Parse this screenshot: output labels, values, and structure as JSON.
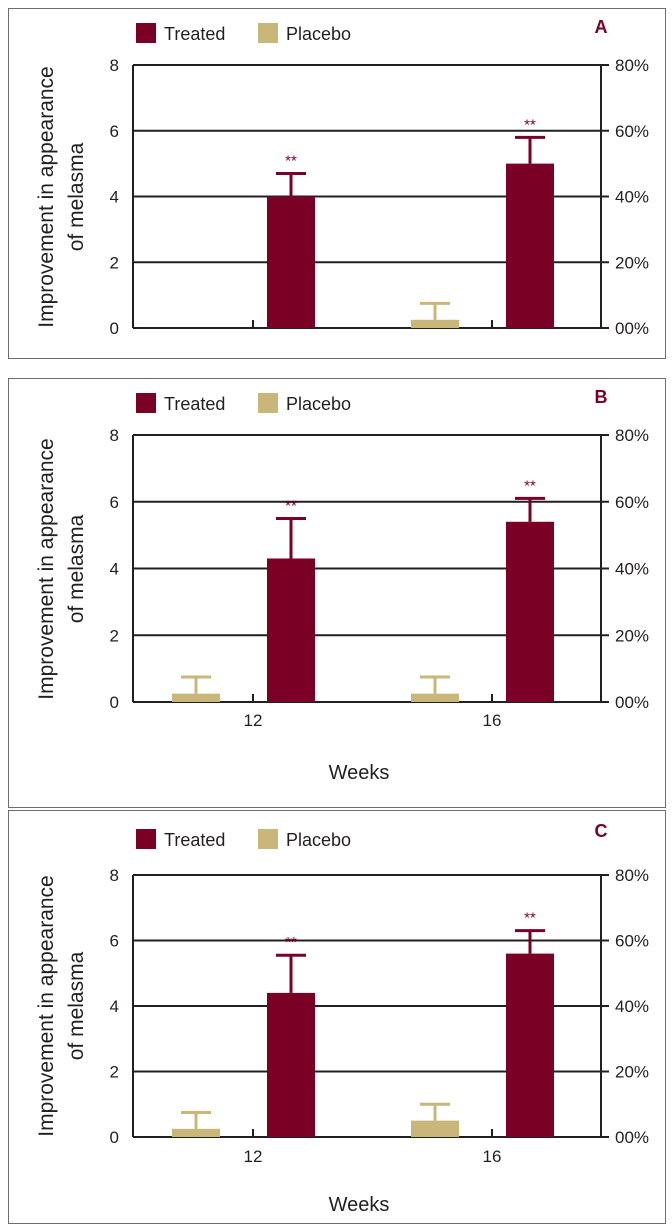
{
  "chart_data": [
    {
      "type": "bar",
      "panel_label": "A",
      "categories": [
        "",
        ""
      ],
      "series": [
        {
          "name": "Treated",
          "color": "#7a0026",
          "values": [
            4.0,
            5.0
          ],
          "errors": [
            0.7,
            0.8
          ],
          "annotations": [
            "**",
            "**"
          ]
        },
        {
          "name": "Placebo",
          "color": "#c9b679",
          "values": [
            0.0,
            0.25
          ],
          "errors": [
            0.0,
            0.5
          ],
          "annotations": [
            "",
            ""
          ]
        }
      ],
      "xlabel": "",
      "ylabel": "Improvement in appearance of melasma",
      "ylim": [
        0,
        8
      ],
      "yticks": [
        "0",
        "2",
        "4",
        "6",
        "8"
      ],
      "y2ticks": [
        "00%",
        "20%",
        "40%",
        "60%",
        "80%"
      ],
      "grid": true,
      "legend": "top-left"
    },
    {
      "type": "bar",
      "panel_label": "B",
      "categories": [
        "12",
        "16"
      ],
      "series": [
        {
          "name": "Treated",
          "color": "#7a0026",
          "values": [
            4.3,
            5.4
          ],
          "errors": [
            1.2,
            0.7
          ],
          "annotations": [
            "**",
            "**"
          ]
        },
        {
          "name": "Placebo",
          "color": "#c9b679",
          "values": [
            0.25,
            0.25
          ],
          "errors": [
            0.5,
            0.5
          ],
          "annotations": [
            "",
            ""
          ]
        }
      ],
      "xlabel": "Weeks",
      "ylabel": "Improvement in appearance of melasma",
      "ylim": [
        0,
        8
      ],
      "yticks": [
        "0",
        "2",
        "4",
        "6",
        "8"
      ],
      "y2ticks": [
        "00%",
        "20%",
        "40%",
        "60%",
        "80%"
      ],
      "grid": true,
      "legend": "top-left"
    },
    {
      "type": "bar",
      "panel_label": "C",
      "categories": [
        "12",
        "16"
      ],
      "series": [
        {
          "name": "Treated",
          "color": "#7a0026",
          "values": [
            4.4,
            5.6
          ],
          "errors": [
            1.15,
            0.7
          ],
          "annotations": [
            "**",
            "**"
          ]
        },
        {
          "name": "Placebo",
          "color": "#c9b679",
          "values": [
            0.25,
            0.5
          ],
          "errors": [
            0.5,
            0.5
          ],
          "annotations": [
            "",
            ""
          ]
        }
      ],
      "xlabel": "Weeks",
      "ylabel": "Improvement in appearance of melasma",
      "ylim": [
        0,
        8
      ],
      "yticks": [
        "0",
        "2",
        "4",
        "6",
        "8"
      ],
      "y2ticks": [
        "00%",
        "20%",
        "40%",
        "60%",
        "80%"
      ],
      "grid": true,
      "legend": "top-left"
    }
  ]
}
